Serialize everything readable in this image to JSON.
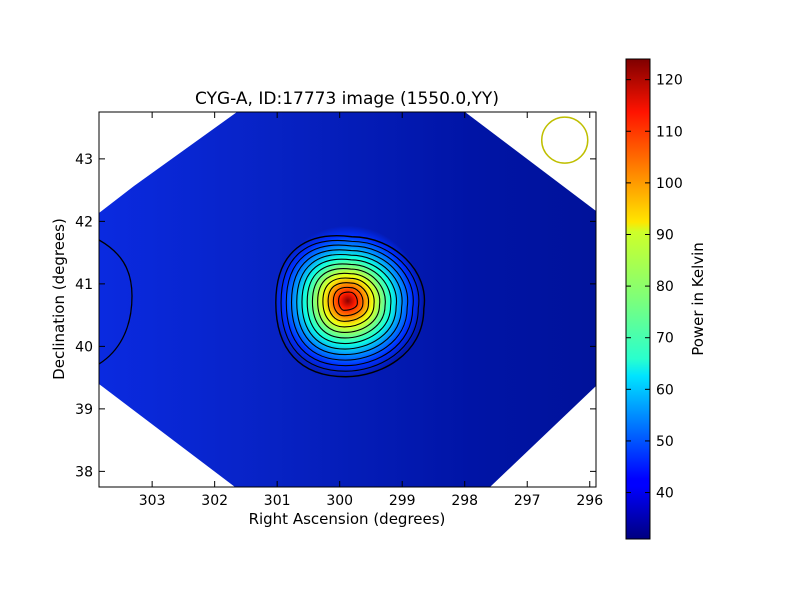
{
  "chart_data": {
    "type": "heatmap",
    "title": "CYG-A, ID:17773 image (1550.0,YY)",
    "xlabel": "Right Ascension (degrees)",
    "ylabel": "Declination (degrees)",
    "xlim": [
      303.85,
      295.9
    ],
    "ylim": [
      37.75,
      43.75
    ],
    "x_ticks": [
      303,
      302,
      301,
      300,
      299,
      298,
      297,
      296
    ],
    "y_ticks": [
      38,
      39,
      40,
      41,
      42,
      43
    ],
    "source": {
      "ra": 299.87,
      "dec": 40.73,
      "peak_kelvin": 124
    },
    "background_kelvin": 33,
    "beam_marker": {
      "ra": 296.4,
      "dec": 43.3,
      "color": "#bfbf00"
    },
    "colorbar": {
      "label": "Power in Kelvin",
      "min": 31,
      "max": 124,
      "ticks": [
        40,
        50,
        60,
        70,
        80,
        90,
        100,
        110,
        120
      ]
    },
    "colormap": "jet",
    "grid": false
  }
}
